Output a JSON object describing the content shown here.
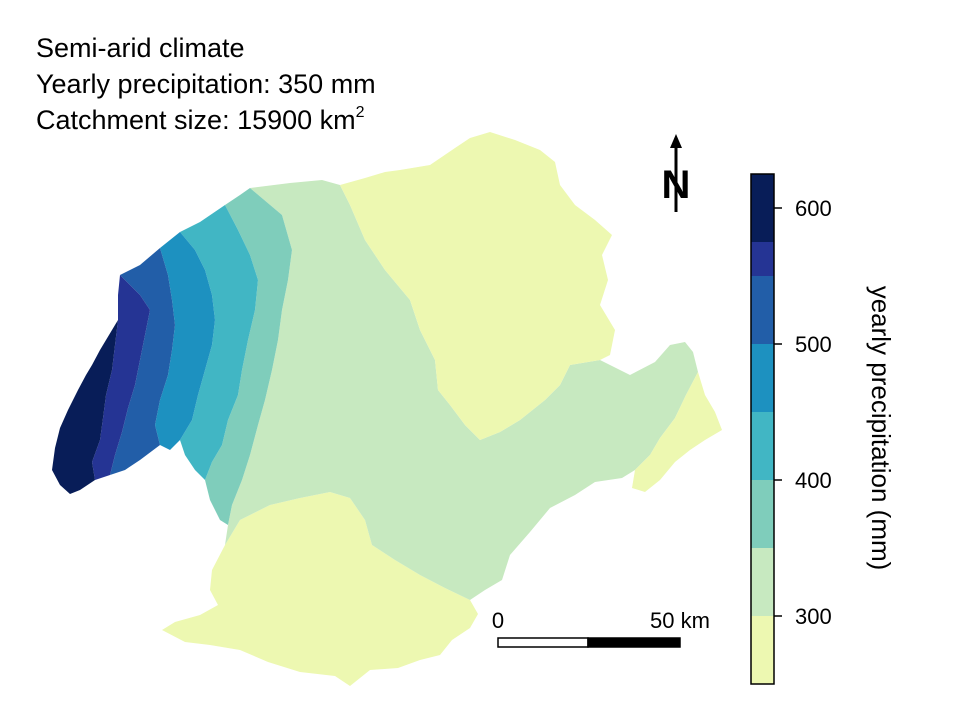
{
  "info": {
    "climate": "Semi-arid climate",
    "precipitation": "Yearly precipitation: 350 mm",
    "catchment_prefix": "Catchment size: 15900 km",
    "catchment_sup": "2"
  },
  "north_arrow": {
    "letter": "N",
    "icon": "north-arrow-icon"
  },
  "legend": {
    "title": "yearly precipitation (mm)",
    "bins": [
      {
        "from": 575,
        "to": 625,
        "color": "#081d58"
      },
      {
        "from": 550,
        "to": 575,
        "color": "#253494"
      },
      {
        "from": 500,
        "to": 550,
        "color": "#225ea8"
      },
      {
        "from": 450,
        "to": 500,
        "color": "#1d91c0"
      },
      {
        "from": 400,
        "to": 450,
        "color": "#41b6c4"
      },
      {
        "from": 350,
        "to": 400,
        "color": "#7fcdbb"
      },
      {
        "from": 300,
        "to": 350,
        "color": "#c7e9c0"
      },
      {
        "from": 250,
        "to": 300,
        "color": "#edf8b1"
      }
    ],
    "ticks": [
      "600",
      "500",
      "400",
      "300"
    ]
  },
  "scale_bar": {
    "left_label": "0",
    "right_label": "50 km"
  },
  "colors": {
    "p300": "#edf8b1",
    "p325": "#c7e9c0",
    "p375": "#7fcdbb",
    "p425": "#41b6c4",
    "p475": "#1d91c0",
    "p525": "#225ea8",
    "p560": "#253494",
    "p600": "#081d58"
  }
}
